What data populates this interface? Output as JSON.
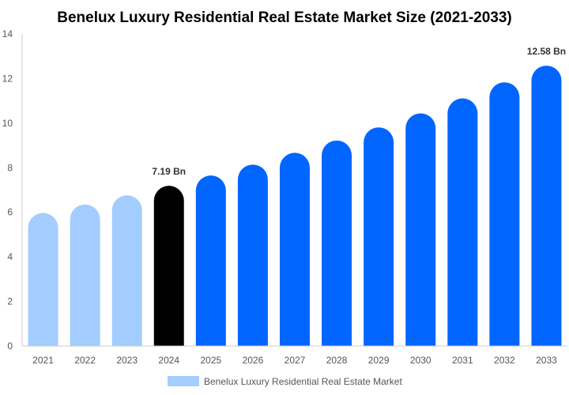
{
  "chart_data": {
    "type": "bar",
    "title": "Benelux Luxury Residential Real Estate Market Size (2021-2033)",
    "xlabel": "",
    "ylabel": "",
    "ylim": [
      0,
      14
    ],
    "yticks": [
      0,
      2,
      4,
      6,
      8,
      10,
      12,
      14
    ],
    "grid": false,
    "legend_position": "bottom",
    "categories": [
      "2021",
      "2022",
      "2023",
      "2024",
      "2025",
      "2026",
      "2027",
      "2028",
      "2029",
      "2030",
      "2031",
      "2032",
      "2033"
    ],
    "series": [
      {
        "name": "Benelux Luxury Residential Real Estate Market",
        "values": [
          5.97,
          6.35,
          6.76,
          7.19,
          7.65,
          8.14,
          8.67,
          9.22,
          9.81,
          10.44,
          11.11,
          11.83,
          12.58
        ]
      }
    ],
    "data_labels": [
      {
        "category": "2024",
        "text": "7.19 Bn"
      },
      {
        "category": "2033",
        "text": "12.58 Bn"
      }
    ],
    "colors": {
      "historical": "#a3cdff",
      "base_year": "#000000",
      "forecast": "#0066ff",
      "legend": "#a3cdff"
    }
  }
}
